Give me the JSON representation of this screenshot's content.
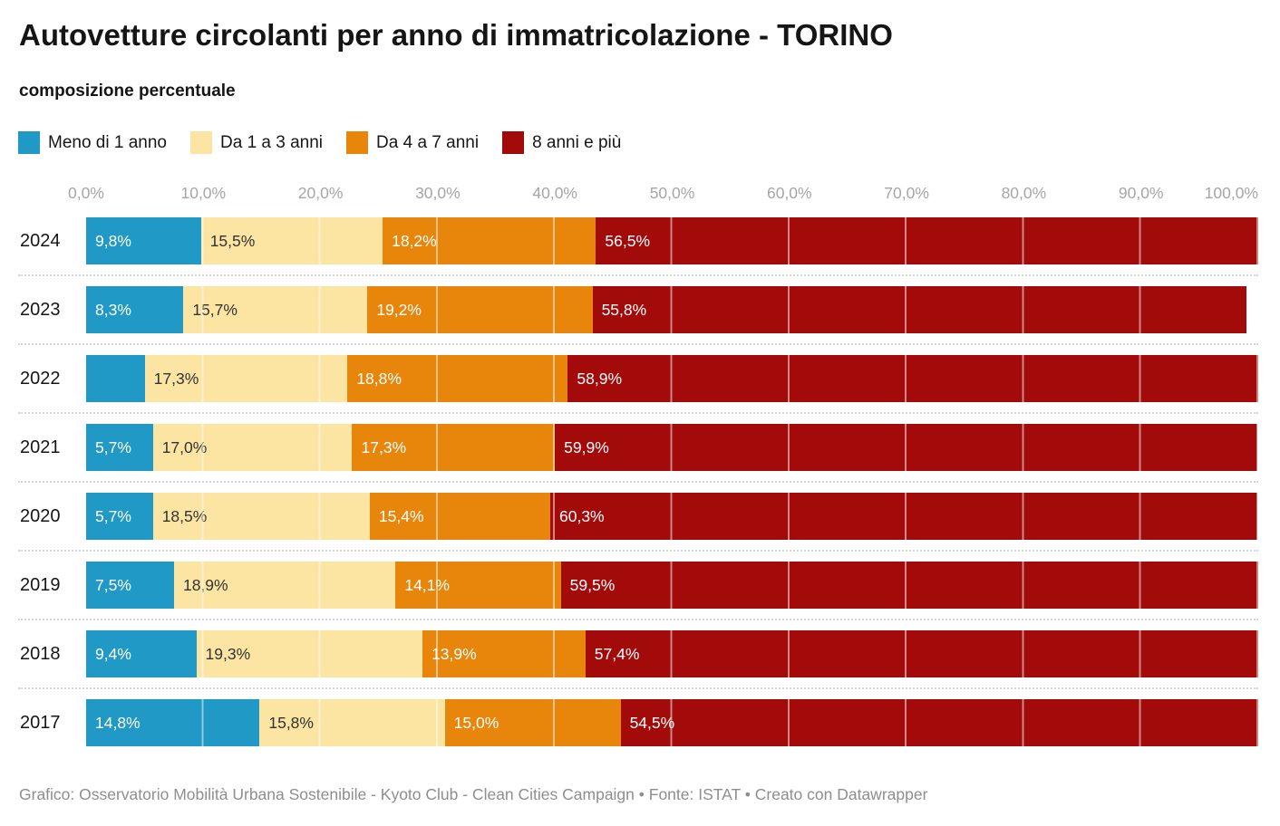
{
  "header": {
    "title": "Autovetture circolanti per anno di immatricolazione - TORINO",
    "subtitle": "composizione percentuale"
  },
  "legend": {
    "items": [
      {
        "label": "Meno di 1 anno",
        "color": "#2199c6"
      },
      {
        "label": "Da 1 a 3 anni",
        "color": "#fce4a3"
      },
      {
        "label": "Da 4 a 7 anni",
        "color": "#e8860c"
      },
      {
        "label": "8 anni e più",
        "color": "#a30b0b"
      }
    ]
  },
  "axis": {
    "ticks": [
      "0,0%",
      "10,0%",
      "20,0%",
      "30,0%",
      "40,0%",
      "50,0%",
      "60,0%",
      "70,0%",
      "80,0%",
      "90,0%",
      "100,0%"
    ]
  },
  "chart_data": {
    "type": "bar",
    "orientation": "horizontal",
    "stacked": true,
    "title": "Autovetture circolanti per anno di immatricolazione - TORINO",
    "subtitle": "composizione percentuale",
    "categories": [
      "2024",
      "2023",
      "2022",
      "2021",
      "2020",
      "2019",
      "2018",
      "2017"
    ],
    "series": [
      {
        "name": "Meno di 1 anno",
        "color": "#2199c6",
        "values": [
          9.8,
          8.3,
          5.0,
          5.7,
          5.7,
          7.5,
          9.4,
          14.8
        ]
      },
      {
        "name": "Da 1 a 3 anni",
        "color": "#fce4a3",
        "values": [
          15.5,
          15.7,
          17.3,
          17.0,
          18.5,
          18.9,
          19.3,
          15.8
        ]
      },
      {
        "name": "Da 4 a 7 anni",
        "color": "#e8860c",
        "values": [
          18.2,
          19.2,
          18.8,
          17.3,
          15.4,
          14.1,
          13.9,
          15.0
        ]
      },
      {
        "name": "8 anni e più",
        "color": "#a30b0b",
        "values": [
          56.5,
          55.8,
          58.9,
          59.9,
          60.3,
          59.5,
          57.4,
          54.5
        ]
      }
    ],
    "xlabel": "",
    "ylabel": "",
    "xlim": [
      0,
      100
    ],
    "x_tick_labels": [
      "0,0%",
      "10,0%",
      "20,0%",
      "30,0%",
      "40,0%",
      "50,0%",
      "60,0%",
      "70,0%",
      "80,0%",
      "90,0%",
      "100,0%"
    ],
    "grid": "vertical-white-over-bars",
    "legend_position": "top",
    "value_label_format": "italian decimal comma, one decimal, % suffix",
    "notes": "2022 first segment (5.0) carries no visible label in the chart"
  },
  "rows": [
    {
      "year": "2024",
      "segments": [
        {
          "label": "9,8%",
          "w": "9.8%"
        },
        {
          "label": "15,5%",
          "w": "15.5%"
        },
        {
          "label": "18,2%",
          "w": "18.2%"
        },
        {
          "label": "56,5%",
          "w": "56.5%"
        }
      ]
    },
    {
      "year": "2023",
      "segments": [
        {
          "label": "8,3%",
          "w": "8.3%"
        },
        {
          "label": "15,7%",
          "w": "15.7%"
        },
        {
          "label": "19,2%",
          "w": "19.2%"
        },
        {
          "label": "55,8%",
          "w": "55.8%"
        }
      ]
    },
    {
      "year": "2022",
      "segments": [
        {
          "label": "",
          "w": "5.0%"
        },
        {
          "label": "17,3%",
          "w": "17.3%"
        },
        {
          "label": "18,8%",
          "w": "18.8%"
        },
        {
          "label": "58,9%",
          "w": "58.9%"
        }
      ]
    },
    {
      "year": "2021",
      "segments": [
        {
          "label": "5,7%",
          "w": "5.7%"
        },
        {
          "label": "17,0%",
          "w": "17.0%"
        },
        {
          "label": "17,3%",
          "w": "17.3%"
        },
        {
          "label": "59,9%",
          "w": "59.9%"
        }
      ]
    },
    {
      "year": "2020",
      "segments": [
        {
          "label": "5,7%",
          "w": "5.7%"
        },
        {
          "label": "18,5%",
          "w": "18.5%"
        },
        {
          "label": "15,4%",
          "w": "15.4%"
        },
        {
          "label": "60,3%",
          "w": "60.3%"
        }
      ]
    },
    {
      "year": "2019",
      "segments": [
        {
          "label": "7,5%",
          "w": "7.5%"
        },
        {
          "label": "18,9%",
          "w": "18.9%"
        },
        {
          "label": "14,1%",
          "w": "14.1%"
        },
        {
          "label": "59,5%",
          "w": "59.5%"
        }
      ]
    },
    {
      "year": "2018",
      "segments": [
        {
          "label": "9,4%",
          "w": "9.4%"
        },
        {
          "label": "19,3%",
          "w": "19.3%"
        },
        {
          "label": "13,9%",
          "w": "13.9%"
        },
        {
          "label": "57,4%",
          "w": "57.4%"
        }
      ]
    },
    {
      "year": "2017",
      "segments": [
        {
          "label": "14,8%",
          "w": "14.8%"
        },
        {
          "label": "15,8%",
          "w": "15.8%"
        },
        {
          "label": "15,0%",
          "w": "15.0%"
        },
        {
          "label": "54,5%",
          "w": "54.5%"
        }
      ]
    }
  ],
  "footer": {
    "text": "Grafico: Osservatorio Mobilità Urbana Sostenibile - Kyoto Club - Clean Cities Campaign • Fonte: ISTAT • Creato con Datawrapper"
  }
}
